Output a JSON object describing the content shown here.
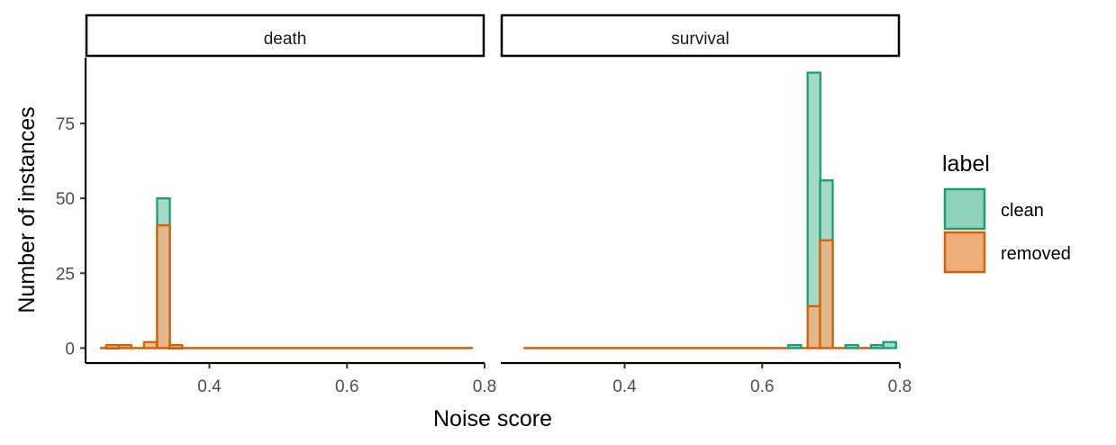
{
  "chart_data": {
    "type": "histogram",
    "xlabel": "Noise score",
    "ylabel": "Number of instances",
    "xlim": [
      0.22,
      0.8
    ],
    "ylim": [
      -5,
      97
    ],
    "x_ticks": [
      0.4,
      0.6,
      0.8
    ],
    "x_tick_labels": [
      "0.4",
      "0.6",
      "0.8"
    ],
    "y_ticks": [
      0,
      25,
      50,
      75
    ],
    "y_tick_labels": [
      "0",
      "25",
      "50",
      "75"
    ],
    "bin_width": 0.0185,
    "legend": {
      "title": "label",
      "position": "right",
      "entries": [
        {
          "name": "clean",
          "fill": "#8fd1bb",
          "stroke": "#1b9e77"
        },
        {
          "name": "removed",
          "fill": "#eeae7a",
          "stroke": "#d95f02"
        }
      ]
    },
    "facets": [
      {
        "name": "death",
        "series": [
          {
            "name": "clean",
            "bins": [
              [
                0.25,
                0
              ],
              [
                0.324,
                50
              ],
              [
                0.342,
                0
              ]
            ]
          },
          {
            "name": "removed",
            "bins": [
              [
                0.25,
                1
              ],
              [
                0.268,
                1
              ],
              [
                0.305,
                2
              ],
              [
                0.324,
                41
              ],
              [
                0.342,
                1
              ]
            ]
          }
        ],
        "baseline_range": [
          0.241,
          0.783
        ]
      },
      {
        "name": "survival",
        "series": [
          {
            "name": "clean",
            "bins": [
              [
                0.638,
                1
              ],
              [
                0.666,
                92
              ],
              [
                0.684,
                56
              ],
              [
                0.721,
                1
              ],
              [
                0.758,
                1
              ],
              [
                0.776,
                2
              ]
            ]
          },
          {
            "name": "removed",
            "bins": [
              [
                0.666,
                14
              ],
              [
                0.684,
                36
              ]
            ]
          }
        ],
        "baseline_range": [
          0.253,
          0.785
        ]
      }
    ]
  }
}
